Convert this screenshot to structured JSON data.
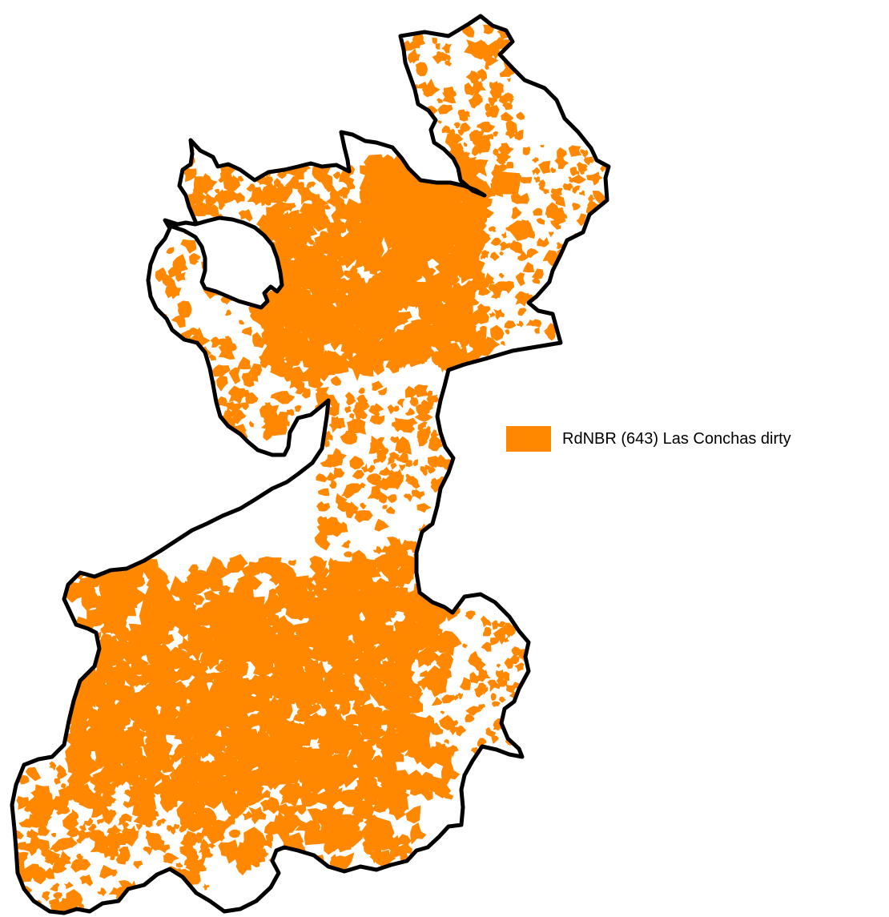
{
  "map": {
    "fill_color": "#ff8800",
    "outline_color": "#000000",
    "background_color": "#ffffff"
  },
  "legend": {
    "label": "RdNBR (643) Las Conchas dirty",
    "swatch_color": "#ff8800"
  }
}
